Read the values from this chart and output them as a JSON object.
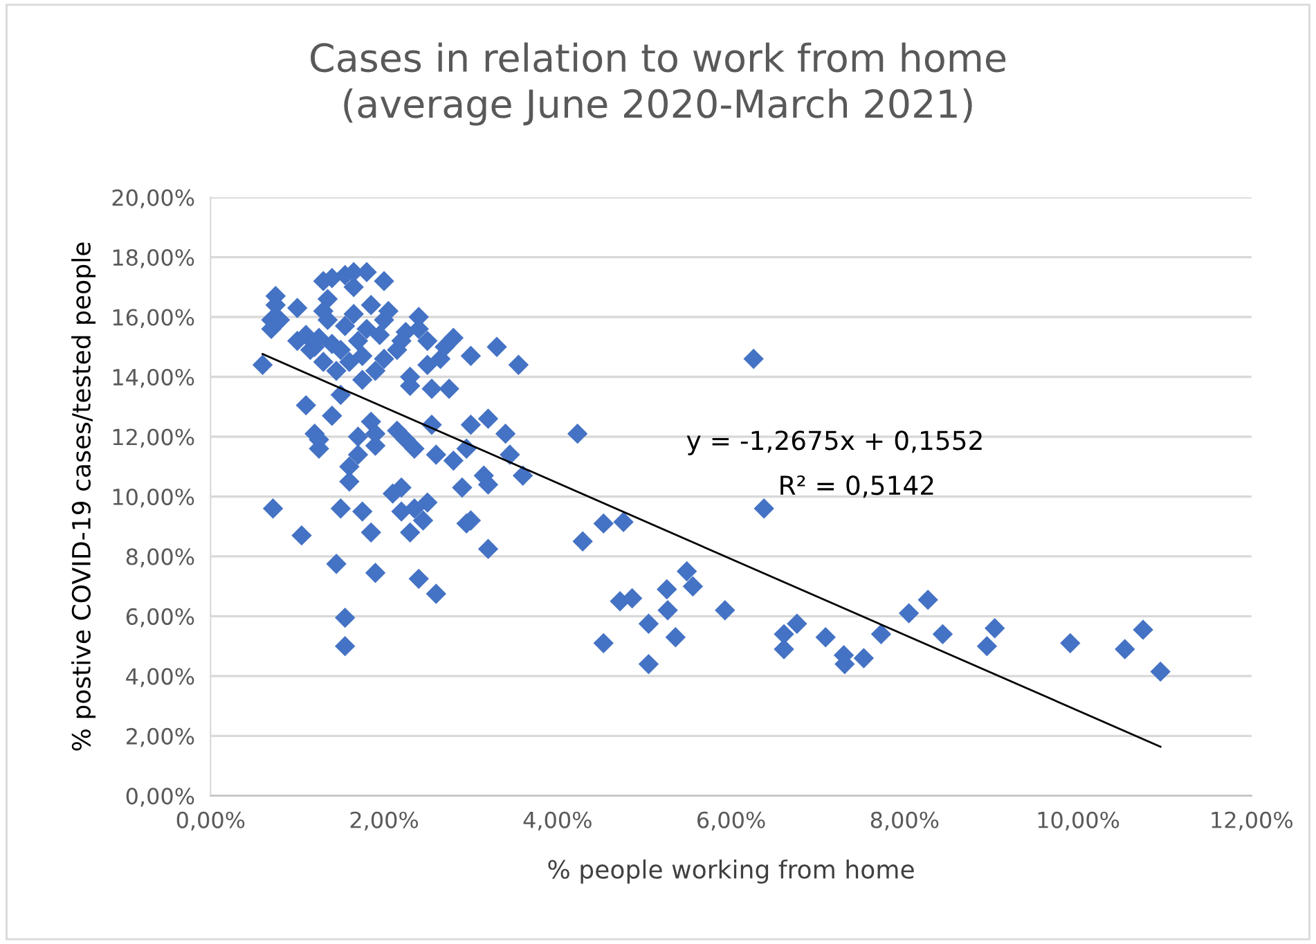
{
  "chart_data": {
    "type": "scatter",
    "title": "Cases in relation to work from home\n(average June 2020-March 2021)",
    "xlabel": "% people working from home",
    "ylabel": "% postive COVID-19 cases/tested people",
    "xlim": [
      0,
      12
    ],
    "ylim": [
      0,
      20
    ],
    "xticks": [
      {
        "value": 0,
        "label": "0,00%"
      },
      {
        "value": 2,
        "label": "2,00%"
      },
      {
        "value": 4,
        "label": "4,00%"
      },
      {
        "value": 6,
        "label": "6,00%"
      },
      {
        "value": 8,
        "label": "8,00%"
      },
      {
        "value": 10,
        "label": "10,00%"
      },
      {
        "value": 12,
        "label": "12,00%"
      }
    ],
    "yticks": [
      {
        "value": 0,
        "label": "0,00%"
      },
      {
        "value": 2,
        "label": "2,00%"
      },
      {
        "value": 4,
        "label": "4,00%"
      },
      {
        "value": 6,
        "label": "6,00%"
      },
      {
        "value": 8,
        "label": "8,00%"
      },
      {
        "value": 10,
        "label": "10,00%"
      },
      {
        "value": 12,
        "label": "12,00%"
      },
      {
        "value": 14,
        "label": "14,00%"
      },
      {
        "value": 16,
        "label": "16,00%"
      },
      {
        "value": 18,
        "label": "18,00%"
      },
      {
        "value": 20,
        "label": "20,00%"
      }
    ],
    "grid": "y",
    "series": [
      {
        "marker": "diamond",
        "color": "#4472c4",
        "x": [
          0.6,
          0.7,
          0.7,
          0.75,
          0.75,
          0.8,
          0.72,
          1.0,
          1.0,
          1.05,
          1.1,
          1.1,
          1.15,
          1.2,
          1.2,
          1.25,
          1.25,
          1.25,
          1.3,
          1.3,
          1.3,
          1.35,
          1.35,
          1.4,
          1.4,
          1.4,
          1.45,
          1.45,
          1.5,
          1.5,
          1.5,
          1.55,
          1.55,
          1.55,
          1.55,
          1.6,
          1.6,
          1.6,
          1.65,
          1.65,
          1.65,
          1.7,
          1.7,
          1.7,
          1.75,
          1.75,
          1.75,
          1.8,
          1.8,
          1.85,
          1.85,
          1.85,
          1.9,
          1.9,
          1.9,
          1.9,
          1.95,
          2.0,
          2.0,
          2.0,
          2.05,
          2.1,
          2.15,
          2.15,
          2.2,
          2.2,
          2.2,
          2.25,
          2.25,
          2.3,
          2.3,
          2.3,
          2.35,
          2.35,
          2.4,
          2.4,
          2.4,
          2.45,
          2.5,
          2.5,
          2.5,
          2.55,
          2.55,
          2.6,
          2.6,
          2.65,
          2.7,
          2.75,
          2.8,
          2.8,
          2.9,
          2.95,
          2.95,
          3.0,
          3.0,
          3.0,
          3.15,
          3.2,
          3.2,
          3.2,
          3.3,
          3.4,
          3.45,
          3.55,
          3.6,
          4.23,
          4.53,
          4.76,
          4.29,
          5.49,
          5.56,
          5.26,
          4.72,
          4.86,
          5.27,
          5.93,
          5.05,
          4.53,
          5.36,
          5.05,
          6.26,
          6.38,
          6.61,
          6.61,
          6.76,
          7.09,
          7.3,
          7.31,
          7.53,
          7.73,
          8.05,
          8.27,
          8.44,
          8.95,
          9.04,
          9.91,
          10.54,
          10.75,
          10.95
        ],
        "values": [
          14.4,
          15.9,
          15.6,
          16.4,
          16.7,
          15.9,
          9.6,
          15.2,
          16.3,
          8.7,
          15.4,
          13.05,
          14.9,
          12.1,
          15.0,
          11.6,
          11.9,
          15.3,
          14.5,
          16.2,
          17.2,
          16.6,
          15.9,
          17.3,
          12.7,
          15.1,
          14.2,
          7.75,
          9.6,
          13.4,
          14.9,
          15.7,
          17.4,
          5.95,
          5.0,
          10.5,
          11.0,
          14.5,
          17.0,
          17.5,
          16.1,
          15.2,
          11.4,
          12.0,
          9.5,
          13.9,
          14.7,
          17.5,
          15.6,
          16.4,
          12.5,
          8.8,
          11.7,
          12.1,
          14.2,
          7.45,
          15.4,
          17.2,
          15.9,
          14.6,
          16.2,
          10.1,
          12.2,
          14.9,
          15.2,
          10.3,
          9.5,
          15.5,
          11.9,
          8.8,
          14.0,
          13.7,
          11.6,
          9.6,
          15.6,
          16.0,
          7.25,
          9.2,
          15.2,
          14.4,
          9.8,
          12.4,
          13.6,
          11.4,
          6.75,
          14.6,
          15.0,
          13.6,
          15.3,
          11.2,
          10.3,
          9.1,
          11.6,
          14.7,
          12.4,
          9.2,
          10.7,
          10.4,
          12.6,
          8.25,
          15.0,
          12.1,
          11.4,
          14.4,
          10.7,
          12.1,
          9.1,
          9.15,
          8.5,
          7.5,
          7.0,
          6.9,
          6.5,
          6.6,
          6.2,
          6.2,
          5.75,
          5.1,
          5.3,
          4.4,
          14.6,
          9.6,
          4.9,
          5.4,
          5.75,
          5.3,
          4.7,
          4.4,
          4.6,
          5.4,
          6.1,
          6.55,
          5.4,
          5.0,
          5.6,
          5.1,
          4.9,
          5.55,
          4.15
        ]
      },
      {
        "type": "line",
        "marker": "none",
        "color": "#000000",
        "x": [
          0.6,
          10.95
        ],
        "values": [
          14.76,
          1.64
        ]
      }
    ],
    "annotations": [
      "y = -1,2675x + 0,1552",
      "R² = 0,5142"
    ]
  }
}
